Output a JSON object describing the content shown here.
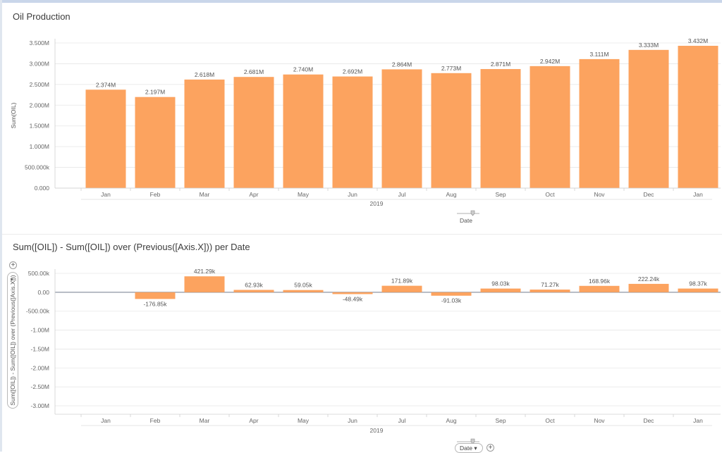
{
  "chart_data": [
    {
      "type": "bar",
      "title": "Oil Production",
      "ylabel": "Sum(OIL)",
      "xlabel": "Date",
      "x_group_label": "2019",
      "categories": [
        "Jan",
        "Feb",
        "Mar",
        "Apr",
        "May",
        "Jun",
        "Jul",
        "Aug",
        "Sep",
        "Oct",
        "Nov",
        "Dec",
        "Jan"
      ],
      "values": [
        2374000,
        2197000,
        2618000,
        2681000,
        2740000,
        2692000,
        2864000,
        2773000,
        2871000,
        2942000,
        3111000,
        3333000,
        3432000
      ],
      "data_labels": [
        "2.374M",
        "2.197M",
        "2.618M",
        "2.681M",
        "2.740M",
        "2.692M",
        "2.864M",
        "2.773M",
        "2.871M",
        "2.942M",
        "3.111M",
        "3.333M",
        "3.432M"
      ],
      "yticks": [
        0,
        500000,
        1000000,
        1500000,
        2000000,
        2500000,
        3000000,
        3500000
      ],
      "ytick_labels": [
        "0.000",
        "500.000k",
        "1.000M",
        "1.500M",
        "2.000M",
        "2.500M",
        "3.000M",
        "3.500M"
      ],
      "ylim": [
        0,
        3500000
      ],
      "color": "#fca35f",
      "grid": true
    },
    {
      "type": "bar",
      "title": "Sum([OIL]) - Sum([OIL]) over (Previous([Axis.X])) per Date",
      "ylabel": "Sum([OIL]) - Sum([OIL]) over (Previous([Axis.X]))",
      "xlabel": "Date",
      "x_group_label": "2019",
      "categories": [
        "Jan",
        "Feb",
        "Mar",
        "Apr",
        "May",
        "Jun",
        "Jul",
        "Aug",
        "Sep",
        "Oct",
        "Nov",
        "Dec",
        "Jan"
      ],
      "values": [
        null,
        -176850,
        421290,
        62930,
        59050,
        -48490,
        171890,
        -91030,
        98030,
        71270,
        168960,
        222240,
        98370
      ],
      "data_labels": [
        "",
        "-176.85k",
        "421.29k",
        "62.93k",
        "59.05k",
        "-48.49k",
        "171.89k",
        "-91.03k",
        "98.03k",
        "71.27k",
        "168.96k",
        "222.24k",
        "98.37k"
      ],
      "yticks": [
        500000,
        0,
        -500000,
        -1000000,
        -1500000,
        -2000000,
        -2500000,
        -3000000
      ],
      "ytick_labels": [
        "500.00k",
        "0.00",
        "-500.00k",
        "-1.00M",
        "-1.50M",
        "-2.00M",
        "-2.50M",
        "-3.00M"
      ],
      "ylim": [
        -3000000,
        500000
      ],
      "color": "#fca35f",
      "grid": true
    }
  ],
  "controls": {
    "add_symbol": "+",
    "dropdown_caret": "▾"
  }
}
